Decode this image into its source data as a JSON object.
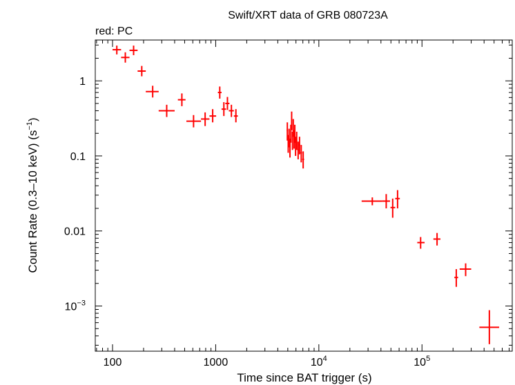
{
  "chart_data": {
    "type": "scatter",
    "title": "Swift/XRT data of GRB 080723A",
    "subtitle": "red: PC",
    "xlabel": "Time since BAT trigger (s)",
    "ylabel_main": "Count Rate (0.3–10 keV) (s",
    "ylabel_sup": "−1",
    "ylabel_close": ")",
    "x_scale": "log",
    "y_scale": "log",
    "xlim": [
      68,
      750000
    ],
    "ylim": [
      0.00025,
      3.5
    ],
    "grid": false,
    "x_ticks": [
      {
        "value": 100,
        "label": "100"
      },
      {
        "value": 1000,
        "label": "1000"
      },
      {
        "value": 10000,
        "base": "10",
        "exp": "4"
      },
      {
        "value": 100000,
        "base": "10",
        "exp": "5"
      }
    ],
    "y_ticks": [
      {
        "value": 1,
        "label": "1"
      },
      {
        "value": 0.1,
        "label": "0.1"
      },
      {
        "value": 0.01,
        "label": "0.01"
      },
      {
        "value": 0.001,
        "base": "10",
        "exp": "−3"
      }
    ],
    "series": [
      {
        "color": "#ff0000",
        "points": [
          {
            "x": 110,
            "y": 2.6,
            "xlo": 100,
            "xhi": 121,
            "ylo": 2.25,
            "yhi": 2.95
          },
          {
            "x": 133,
            "y": 2.05,
            "xlo": 121,
            "xhi": 146,
            "ylo": 1.75,
            "yhi": 2.4
          },
          {
            "x": 160,
            "y": 2.55,
            "xlo": 146,
            "xhi": 175,
            "ylo": 2.2,
            "yhi": 2.95
          },
          {
            "x": 192,
            "y": 1.35,
            "xlo": 175,
            "xhi": 210,
            "ylo": 1.15,
            "yhi": 1.58
          },
          {
            "x": 245,
            "y": 0.72,
            "xlo": 210,
            "xhi": 280,
            "ylo": 0.6,
            "yhi": 0.86
          },
          {
            "x": 335,
            "y": 0.4,
            "xlo": 280,
            "xhi": 400,
            "ylo": 0.33,
            "yhi": 0.48
          },
          {
            "x": 470,
            "y": 0.56,
            "xlo": 430,
            "xhi": 510,
            "ylo": 0.46,
            "yhi": 0.68
          },
          {
            "x": 610,
            "y": 0.29,
            "xlo": 520,
            "xhi": 720,
            "ylo": 0.24,
            "yhi": 0.35
          },
          {
            "x": 790,
            "y": 0.31,
            "xlo": 720,
            "xhi": 870,
            "ylo": 0.25,
            "yhi": 0.38
          },
          {
            "x": 935,
            "y": 0.34,
            "xlo": 870,
            "xhi": 1010,
            "ylo": 0.28,
            "yhi": 0.42
          },
          {
            "x": 1095,
            "y": 0.7,
            "xlo": 1050,
            "xhi": 1140,
            "ylo": 0.58,
            "yhi": 0.84
          },
          {
            "x": 1200,
            "y": 0.42,
            "xlo": 1140,
            "xhi": 1260,
            "ylo": 0.34,
            "yhi": 0.52
          },
          {
            "x": 1300,
            "y": 0.5,
            "xlo": 1240,
            "xhi": 1360,
            "ylo": 0.41,
            "yhi": 0.61
          },
          {
            "x": 1420,
            "y": 0.4,
            "xlo": 1340,
            "xhi": 1500,
            "ylo": 0.33,
            "yhi": 0.48
          },
          {
            "x": 1570,
            "y": 0.34,
            "xlo": 1500,
            "xhi": 1640,
            "ylo": 0.28,
            "yhi": 0.42
          },
          {
            "x": 4950,
            "y": 0.22,
            "xlo": 4880,
            "xhi": 5020,
            "ylo": 0.16,
            "yhi": 0.28
          },
          {
            "x": 5050,
            "y": 0.15,
            "xlo": 4990,
            "xhi": 5110,
            "ylo": 0.11,
            "yhi": 0.19
          },
          {
            "x": 5150,
            "y": 0.18,
            "xlo": 5090,
            "xhi": 5210,
            "ylo": 0.13,
            "yhi": 0.23
          },
          {
            "x": 5250,
            "y": 0.13,
            "xlo": 5190,
            "xhi": 5310,
            "ylo": 0.095,
            "yhi": 0.17
          },
          {
            "x": 5350,
            "y": 0.2,
            "xlo": 5290,
            "xhi": 5410,
            "ylo": 0.15,
            "yhi": 0.26
          },
          {
            "x": 5450,
            "y": 0.3,
            "xlo": 5390,
            "xhi": 5510,
            "ylo": 0.22,
            "yhi": 0.39
          },
          {
            "x": 5550,
            "y": 0.16,
            "xlo": 5490,
            "xhi": 5610,
            "ylo": 0.12,
            "yhi": 0.21
          },
          {
            "x": 5650,
            "y": 0.24,
            "xlo": 5590,
            "xhi": 5710,
            "ylo": 0.18,
            "yhi": 0.31
          },
          {
            "x": 5750,
            "y": 0.17,
            "xlo": 5690,
            "xhi": 5810,
            "ylo": 0.125,
            "yhi": 0.22
          },
          {
            "x": 5850,
            "y": 0.2,
            "xlo": 5790,
            "xhi": 5910,
            "ylo": 0.15,
            "yhi": 0.26
          },
          {
            "x": 5950,
            "y": 0.14,
            "xlo": 5890,
            "xhi": 6010,
            "ylo": 0.1,
            "yhi": 0.18
          },
          {
            "x": 6100,
            "y": 0.16,
            "xlo": 6020,
            "xhi": 6180,
            "ylo": 0.12,
            "yhi": 0.21
          },
          {
            "x": 6300,
            "y": 0.12,
            "xlo": 6200,
            "xhi": 6400,
            "ylo": 0.09,
            "yhi": 0.155
          },
          {
            "x": 6500,
            "y": 0.14,
            "xlo": 6400,
            "xhi": 6600,
            "ylo": 0.105,
            "yhi": 0.18
          },
          {
            "x": 6750,
            "y": 0.11,
            "xlo": 6620,
            "xhi": 6880,
            "ylo": 0.082,
            "yhi": 0.14
          },
          {
            "x": 7050,
            "y": 0.09,
            "xlo": 6900,
            "xhi": 7200,
            "ylo": 0.068,
            "yhi": 0.115
          },
          {
            "x": 33000,
            "y": 0.025,
            "xlo": 26000,
            "xhi": 41000,
            "ylo": 0.022,
            "yhi": 0.028
          },
          {
            "x": 45000,
            "y": 0.025,
            "xlo": 41000,
            "xhi": 49000,
            "ylo": 0.02,
            "yhi": 0.031
          },
          {
            "x": 52000,
            "y": 0.0205,
            "xlo": 49500,
            "xhi": 55000,
            "ylo": 0.015,
            "yhi": 0.027
          },
          {
            "x": 58000,
            "y": 0.027,
            "xlo": 55000,
            "xhi": 61000,
            "ylo": 0.02,
            "yhi": 0.035
          },
          {
            "x": 97000,
            "y": 0.007,
            "xlo": 90000,
            "xhi": 106000,
            "ylo": 0.0058,
            "yhi": 0.0083
          },
          {
            "x": 140000,
            "y": 0.0078,
            "xlo": 129000,
            "xhi": 151000,
            "ylo": 0.0064,
            "yhi": 0.0094
          },
          {
            "x": 215000,
            "y": 0.0024,
            "xlo": 206000,
            "xhi": 224000,
            "ylo": 0.0018,
            "yhi": 0.0031
          },
          {
            "x": 265000,
            "y": 0.0031,
            "xlo": 232000,
            "xhi": 300000,
            "ylo": 0.0025,
            "yhi": 0.0037
          },
          {
            "x": 450000,
            "y": 0.00052,
            "xlo": 360000,
            "xhi": 560000,
            "ylo": 0.00031,
            "yhi": 0.00088
          }
        ]
      }
    ]
  }
}
